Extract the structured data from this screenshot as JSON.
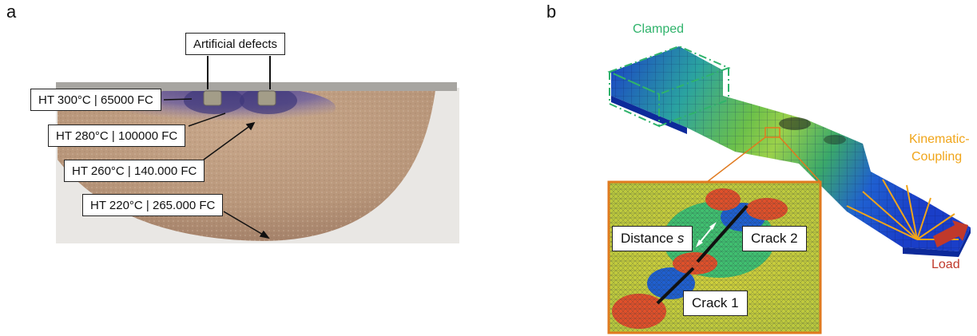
{
  "panels": [
    {
      "letter": "a",
      "header_label": "Artificial defects",
      "labels": [
        "HT 300°C | 65000 FC",
        "HT 280°C | 100000 FC",
        "HT 260°C | 140.000 FC",
        "HT 220°C | 265.000 FC"
      ]
    },
    {
      "letter": "b",
      "annotations": {
        "clamped": "Clamped",
        "kinematic_1": "Kinematic-",
        "kinematic_2": "Coupling",
        "load": "Load"
      },
      "inset": {
        "distance_prefix": "Distance ",
        "distance_var": "s",
        "crack_2": "Crack 2",
        "crack_1": "Crack 1"
      }
    }
  ],
  "colors": {
    "clamped": "#2fb36b",
    "kinematic": "#f0a51a",
    "load": "#c0392b",
    "zoom_frame": "#e07a1f"
  }
}
